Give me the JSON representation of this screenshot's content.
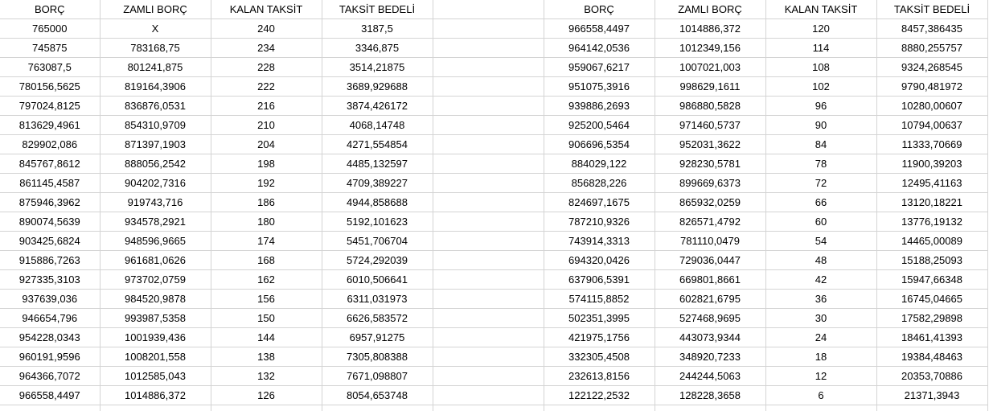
{
  "headers": [
    "BORÇ",
    "ZAMLI BORÇ",
    "KALAN TAKSİT",
    "TAKSİT BEDELİ"
  ],
  "left_rows": [
    [
      "765000",
      "X",
      "240",
      "3187,5"
    ],
    [
      "745875",
      "783168,75",
      "234",
      "3346,875"
    ],
    [
      "763087,5",
      "801241,875",
      "228",
      "3514,21875"
    ],
    [
      "780156,5625",
      "819164,3906",
      "222",
      "3689,929688"
    ],
    [
      "797024,8125",
      "836876,0531",
      "216",
      "3874,426172"
    ],
    [
      "813629,4961",
      "854310,9709",
      "210",
      "4068,14748"
    ],
    [
      "829902,086",
      "871397,1903",
      "204",
      "4271,554854"
    ],
    [
      "845767,8612",
      "888056,2542",
      "198",
      "4485,132597"
    ],
    [
      "861145,4587",
      "904202,7316",
      "192",
      "4709,389227"
    ],
    [
      "875946,3962",
      "919743,716",
      "186",
      "4944,858688"
    ],
    [
      "890074,5639",
      "934578,2921",
      "180",
      "5192,101623"
    ],
    [
      "903425,6824",
      "948596,9665",
      "174",
      "5451,706704"
    ],
    [
      "915886,7263",
      "961681,0626",
      "168",
      "5724,292039"
    ],
    [
      "927335,3103",
      "973702,0759",
      "162",
      "6010,506641"
    ],
    [
      "937639,036",
      "984520,9878",
      "156",
      "6311,031973"
    ],
    [
      "946654,796",
      "993987,5358",
      "150",
      "6626,583572"
    ],
    [
      "954228,0343",
      "1001939,436",
      "144",
      "6957,91275"
    ],
    [
      "960191,9596",
      "1008201,558",
      "138",
      "7305,808388"
    ],
    [
      "964366,7072",
      "1012585,043",
      "132",
      "7671,098807"
    ],
    [
      "966558,4497",
      "1014886,372",
      "126",
      "8054,653748"
    ]
  ],
  "right_rows": [
    [
      "966558,4497",
      "1014886,372",
      "120",
      "8457,386435"
    ],
    [
      "964142,0536",
      "1012349,156",
      "114",
      "8880,255757"
    ],
    [
      "959067,6217",
      "1007021,003",
      "108",
      "9324,268545"
    ],
    [
      "951075,3916",
      "998629,1611",
      "102",
      "9790,481972"
    ],
    [
      "939886,2693",
      "986880,5828",
      "96",
      "10280,00607"
    ],
    [
      "925200,5464",
      "971460,5737",
      "90",
      "10794,00637"
    ],
    [
      "906696,5354",
      "952031,3622",
      "84",
      "11333,70669"
    ],
    [
      "884029,122",
      "928230,5781",
      "78",
      "11900,39203"
    ],
    [
      "856828,226",
      "899669,6373",
      "72",
      "12495,41163"
    ],
    [
      "824697,1675",
      "865932,0259",
      "66",
      "13120,18221"
    ],
    [
      "787210,9326",
      "826571,4792",
      "60",
      "13776,19132"
    ],
    [
      "743914,3313",
      "781110,0479",
      "54",
      "14465,00089"
    ],
    [
      "694320,0426",
      "729036,0447",
      "48",
      "15188,25093"
    ],
    [
      "637906,5391",
      "669801,8661",
      "42",
      "15947,66348"
    ],
    [
      "574115,8852",
      "602821,6795",
      "36",
      "16745,04665"
    ],
    [
      "502351,3995",
      "527468,9695",
      "30",
      "17582,29898"
    ],
    [
      "421975,1756",
      "443073,9344",
      "24",
      "18461,41393"
    ],
    [
      "332305,4508",
      "348920,7233",
      "18",
      "19384,48463"
    ],
    [
      "232613,8156",
      "244244,5063",
      "12",
      "20353,70886"
    ],
    [
      "122122,2532",
      "128228,3658",
      "6",
      "21371,3943"
    ]
  ]
}
